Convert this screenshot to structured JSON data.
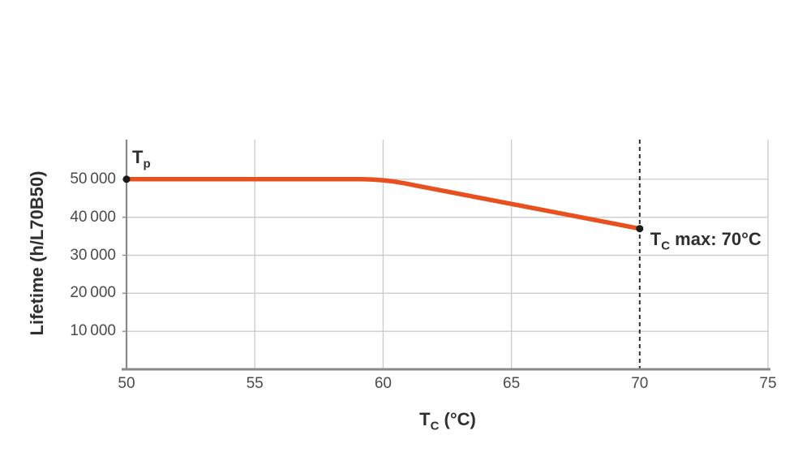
{
  "chart_data": {
    "type": "line",
    "title": "",
    "xlabel": {
      "main": "T",
      "sub": "C",
      "rest": " (°C)"
    },
    "ylabel": "Lifetime (h/L70B50)",
    "xlim": [
      50,
      75
    ],
    "ylim": [
      0,
      60000
    ],
    "xticks": [
      50,
      55,
      60,
      65,
      70,
      75
    ],
    "xtick_labels": [
      "50",
      "55",
      "60",
      "65",
      "70",
      "75"
    ],
    "yticks": [
      10000,
      20000,
      30000,
      40000,
      50000
    ],
    "ytick_labels": [
      "10 000",
      "20 000",
      "30 000",
      "40 000",
      "50 000"
    ],
    "grid": true,
    "legend_position": "none",
    "series": [
      {
        "name": "lifetime-vs-case-temperature",
        "color": "#e8511f",
        "points": [
          [
            50,
            50000
          ],
          [
            60,
            50000
          ],
          [
            70,
            37000
          ]
        ]
      }
    ],
    "markers": [
      {
        "x": 50,
        "y": 50000,
        "label": {
          "main": "T",
          "sub": "p",
          "rest": ""
        }
      },
      {
        "x": 70,
        "y": 37000,
        "label": {
          "main": "T",
          "sub": "C",
          "rest": " max: 70°C"
        }
      }
    ],
    "vline": {
      "x": 70,
      "style": "dashed",
      "color": "#2e2e2e"
    },
    "colors": {
      "axis": "#8a8a8a",
      "grid": "#cccccc",
      "tick_label": "#4a4a4a",
      "label": "#2f2f2f",
      "marker_dot": "#1a1a1a",
      "background": "#ffffff"
    }
  }
}
